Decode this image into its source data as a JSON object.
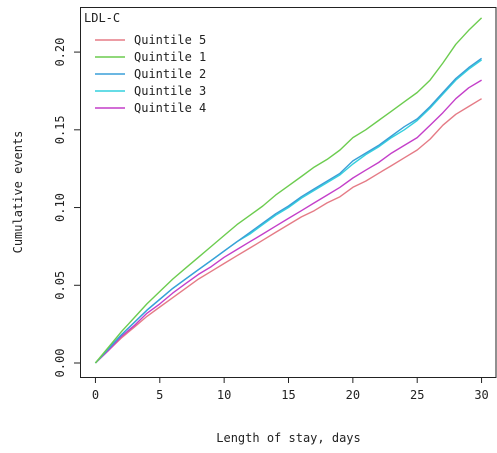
{
  "chart_data": {
    "type": "line",
    "title": "",
    "xlabel": "Length of stay, days",
    "ylabel": "Cumulative events",
    "xlim": [
      -1.2,
      31.2
    ],
    "ylim": [
      -0.009,
      0.229
    ],
    "xticks": [
      0,
      5,
      10,
      15,
      20,
      25,
      30
    ],
    "yticks": [
      0.0,
      0.05,
      0.1,
      0.15,
      0.2
    ],
    "ytick_labels": [
      "0.00",
      "0.05",
      "0.10",
      "0.15",
      "0.20"
    ],
    "grid": false,
    "legend": {
      "title": "LDL-C",
      "placement": "top-left",
      "entries": [
        "Quintile 5",
        "Quintile 1",
        "Quintile 2",
        "Quintile 3",
        "Quintile 4"
      ]
    },
    "series": [
      {
        "name": "Quintile 5",
        "color": "#e57b86",
        "x": [
          0,
          1,
          2,
          3,
          4,
          5,
          6,
          7,
          8,
          9,
          10,
          11,
          12,
          13,
          14,
          15,
          16,
          17,
          18,
          19,
          20,
          21,
          22,
          23,
          24,
          25,
          26,
          27,
          28,
          29,
          30
        ],
        "y": [
          0.0,
          0.008,
          0.016,
          0.023,
          0.03,
          0.036,
          0.042,
          0.048,
          0.054,
          0.059,
          0.064,
          0.069,
          0.074,
          0.079,
          0.084,
          0.089,
          0.094,
          0.098,
          0.103,
          0.107,
          0.113,
          0.117,
          0.122,
          0.127,
          0.132,
          0.137,
          0.144,
          0.153,
          0.16,
          0.165,
          0.17
        ]
      },
      {
        "name": "Quintile 1",
        "color": "#6ccc4f",
        "x": [
          0,
          1,
          2,
          3,
          4,
          5,
          6,
          7,
          8,
          9,
          10,
          11,
          12,
          13,
          14,
          15,
          16,
          17,
          18,
          19,
          20,
          21,
          22,
          23,
          24,
          25,
          26,
          27,
          28,
          29,
          30
        ],
        "y": [
          0.0,
          0.01,
          0.02,
          0.029,
          0.038,
          0.046,
          0.054,
          0.061,
          0.068,
          0.075,
          0.082,
          0.089,
          0.095,
          0.101,
          0.108,
          0.114,
          0.12,
          0.126,
          0.131,
          0.137,
          0.145,
          0.15,
          0.156,
          0.162,
          0.168,
          0.174,
          0.182,
          0.193,
          0.205,
          0.214,
          0.222
        ]
      },
      {
        "name": "Quintile 2",
        "color": "#3a9fd8",
        "x": [
          0,
          1,
          2,
          3,
          4,
          5,
          6,
          7,
          8,
          9,
          10,
          11,
          12,
          13,
          14,
          15,
          16,
          17,
          18,
          19,
          20,
          21,
          22,
          23,
          24,
          25,
          26,
          27,
          28,
          29,
          30
        ],
        "y": [
          0.0,
          0.009,
          0.018,
          0.026,
          0.034,
          0.041,
          0.048,
          0.054,
          0.06,
          0.066,
          0.072,
          0.078,
          0.084,
          0.09,
          0.096,
          0.101,
          0.107,
          0.112,
          0.117,
          0.122,
          0.13,
          0.135,
          0.14,
          0.146,
          0.152,
          0.157,
          0.165,
          0.174,
          0.183,
          0.19,
          0.196
        ]
      },
      {
        "name": "Quintile 3",
        "color": "#34d0dd",
        "x": [
          0,
          1,
          2,
          3,
          4,
          5,
          6,
          7,
          8,
          9,
          10,
          11,
          12,
          13,
          14,
          15,
          16,
          17,
          18,
          19,
          20,
          21,
          22,
          23,
          24,
          25,
          26,
          27,
          28,
          29,
          30
        ],
        "y": [
          0.0,
          0.009,
          0.018,
          0.026,
          0.034,
          0.041,
          0.048,
          0.054,
          0.06,
          0.066,
          0.072,
          0.078,
          0.083,
          0.089,
          0.095,
          0.1,
          0.106,
          0.111,
          0.116,
          0.121,
          0.128,
          0.134,
          0.139,
          0.145,
          0.15,
          0.156,
          0.164,
          0.173,
          0.182,
          0.189,
          0.195
        ]
      },
      {
        "name": "Quintile 4",
        "color": "#c43fc9",
        "x": [
          0,
          1,
          2,
          3,
          4,
          5,
          6,
          7,
          8,
          9,
          10,
          11,
          12,
          13,
          14,
          15,
          16,
          17,
          18,
          19,
          20,
          21,
          22,
          23,
          24,
          25,
          26,
          27,
          28,
          29,
          30
        ],
        "y": [
          0.0,
          0.008,
          0.017,
          0.024,
          0.032,
          0.038,
          0.045,
          0.051,
          0.057,
          0.062,
          0.068,
          0.073,
          0.078,
          0.083,
          0.088,
          0.093,
          0.098,
          0.103,
          0.108,
          0.113,
          0.119,
          0.124,
          0.129,
          0.135,
          0.14,
          0.145,
          0.153,
          0.161,
          0.17,
          0.177,
          0.182
        ]
      }
    ]
  }
}
